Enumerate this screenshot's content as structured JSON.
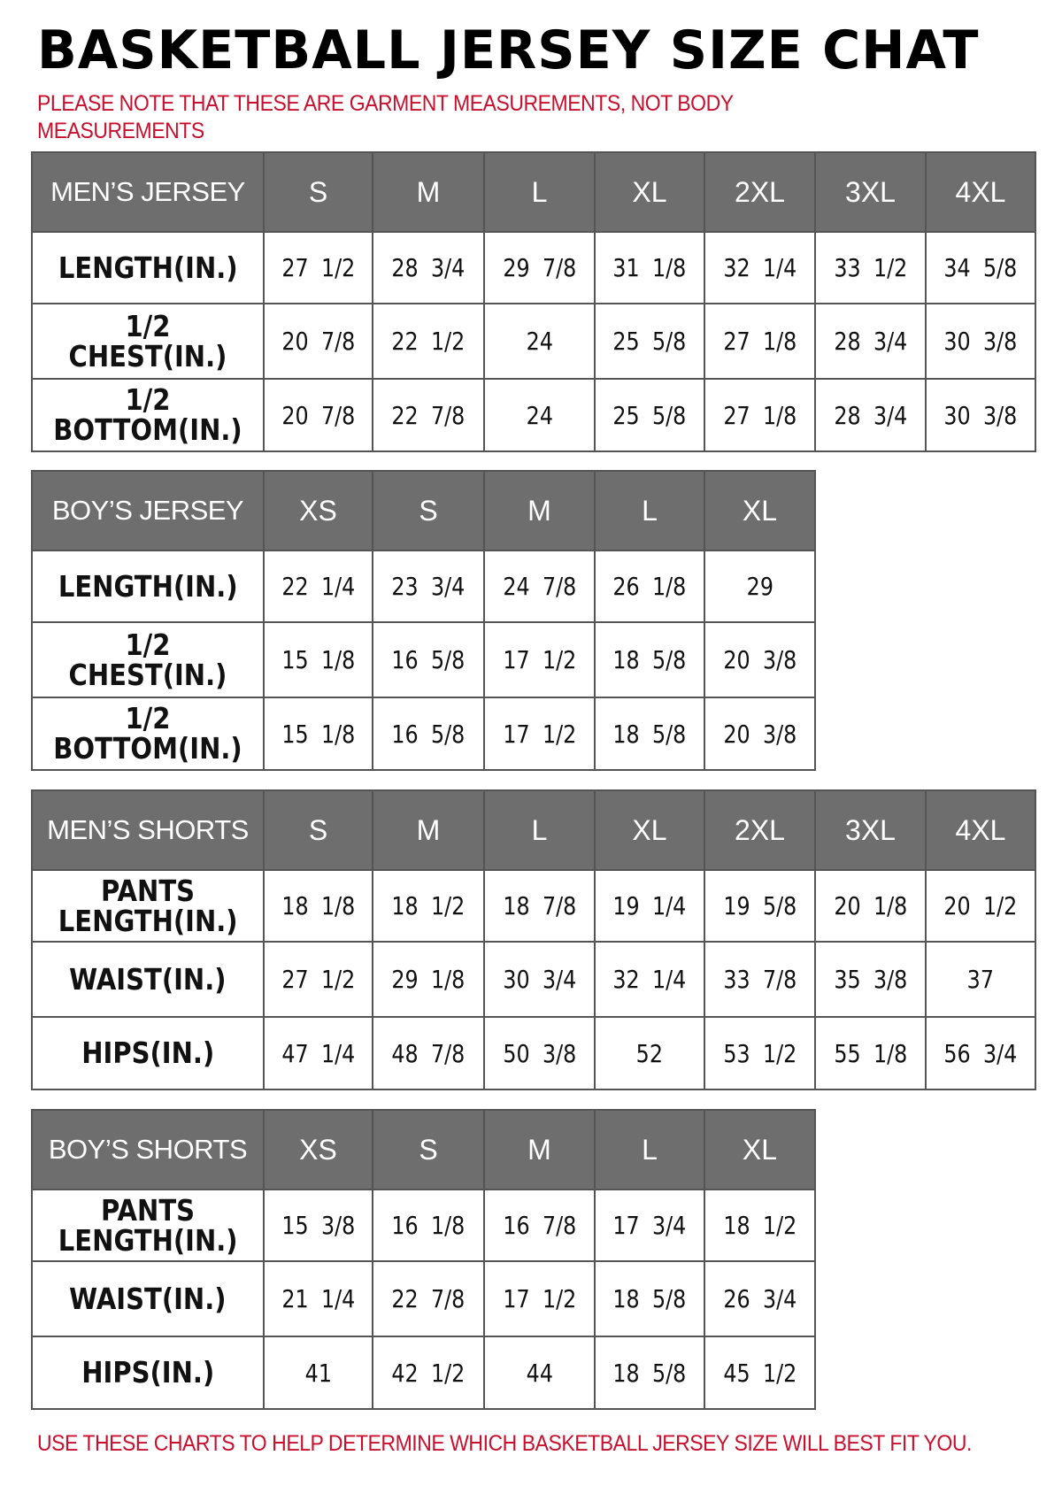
{
  "title": "BASKETBALL JERSEY SIZE CHAT",
  "note": "PLEASE NOTE THAT THESE ARE GARMENT MEASUREMENTS, NOT BODY MEASUREMENTS",
  "footer": "USE THESE CHARTS TO HELP DETERMINE WHICH BASKETBALL JERSEY SIZE WILL BEST FIT YOU.",
  "colors": {
    "header_bg": "#6e6e6e",
    "note_red": "#c8102e"
  },
  "tables": [
    {
      "name": "MEN’S JERSEY",
      "sizes": [
        "S",
        "M",
        "L",
        "XL",
        "2XL",
        "3XL",
        "4XL"
      ],
      "rows": [
        {
          "label": "LENGTH(IN.)",
          "values": [
            "27 1/2",
            "28 3/4",
            "29 7/8",
            "31 1/8",
            "32 1/4",
            "33 1/2",
            "34 5/8"
          ]
        },
        {
          "label": "1/2 CHEST(IN.)",
          "values": [
            "20 7/8",
            "22 1/2",
            "24",
            "25 5/8",
            "27 1/8",
            "28 3/4",
            "30 3/8"
          ]
        },
        {
          "label": "1/2 BOTTOM(IN.)",
          "values": [
            "20 7/8",
            "22 7/8",
            "24",
            "25 5/8",
            "27 1/8",
            "28 3/4",
            "30 3/8"
          ]
        }
      ]
    },
    {
      "name": "BOY’S JERSEY",
      "sizes": [
        "XS",
        "S",
        "M",
        "L",
        "XL"
      ],
      "rows": [
        {
          "label": "LENGTH(IN.)",
          "values": [
            "22 1/4",
            "23 3/4",
            "24 7/8",
            "26 1/8",
            "29"
          ]
        },
        {
          "label": "1/2 CHEST(IN.)",
          "values": [
            "15 1/8",
            "16 5/8",
            "17 1/2",
            "18 5/8",
            "20 3/8"
          ]
        },
        {
          "label": "1/2 BOTTOM(IN.)",
          "values": [
            "15 1/8",
            "16 5/8",
            "17 1/2",
            "18 5/8",
            "20 3/8"
          ]
        }
      ]
    },
    {
      "name": "MEN’S SHORTS",
      "sizes": [
        "S",
        "M",
        "L",
        "XL",
        "2XL",
        "3XL",
        "4XL"
      ],
      "rows": [
        {
          "label": "PANTS LENGTH(IN.)",
          "values": [
            "18 1/8",
            "18 1/2",
            "18 7/8",
            "19 1/4",
            "19 5/8",
            "20 1/8",
            "20 1/2"
          ]
        },
        {
          "label": "WAIST(IN.)",
          "values": [
            "27 1/2",
            "29 1/8",
            "30 3/4",
            "32 1/4",
            "33 7/8",
            "35 3/8",
            "37"
          ]
        },
        {
          "label": "HIPS(IN.)",
          "values": [
            "47 1/4",
            "48 7/8",
            "50 3/8",
            "52",
            "53 1/2",
            "55 1/8",
            "56 3/4"
          ]
        }
      ]
    },
    {
      "name": "BOY’S SHORTS",
      "sizes": [
        "XS",
        "S",
        "M",
        "L",
        "XL"
      ],
      "rows": [
        {
          "label": "PANTS LENGTH(IN.)",
          "values": [
            "15 3/8",
            "16 1/8",
            "16 7/8",
            "17 3/4",
            "18 1/2"
          ]
        },
        {
          "label": "WAIST(IN.)",
          "values": [
            "21 1/4",
            "22 7/8",
            "17 1/2",
            "18 5/8",
            "26 3/4"
          ]
        },
        {
          "label": "HIPS(IN.)",
          "values": [
            "41",
            "42 1/2",
            "44",
            "18 5/8",
            "45 1/2"
          ]
        }
      ]
    }
  ]
}
